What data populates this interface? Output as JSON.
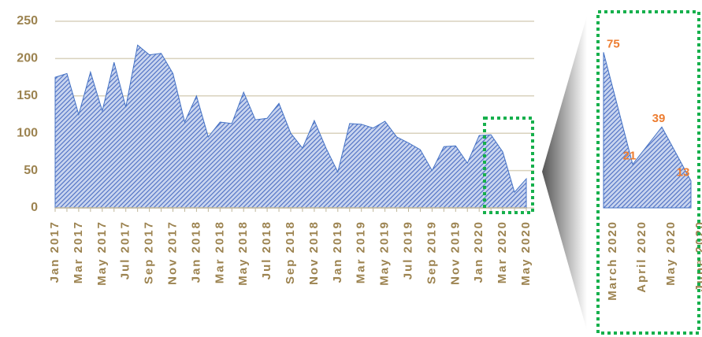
{
  "chart_data": [
    {
      "type": "area",
      "color": "#4472c4",
      "grid": true,
      "categories": [
        "Jan 2017",
        null,
        "Mar 2017",
        null,
        "May 2017",
        null,
        "Jul 2017",
        null,
        "Sep 2017",
        null,
        "Nov 2017",
        null,
        "Jan 2018",
        null,
        "Mar 2018",
        null,
        "May 2018",
        null,
        "Jul 2018",
        null,
        "Sep 2018",
        null,
        "Nov 2018",
        null,
        "Jan 2019",
        null,
        "Mar 2019",
        null,
        "May 2019",
        null,
        "Jul 2019",
        null,
        "Sep 2019",
        null,
        "Nov 2019",
        null,
        "Jan 2020",
        null,
        "Mar 2020",
        null,
        "May 2020"
      ],
      "values": [
        175,
        180,
        125,
        182,
        130,
        195,
        135,
        218,
        205,
        207,
        180,
        115,
        150,
        95,
        115,
        113,
        155,
        118,
        120,
        140,
        100,
        80,
        117,
        80,
        48,
        113,
        112,
        107,
        116,
        95,
        87,
        78,
        50,
        82,
        83,
        60,
        97,
        98,
        75,
        21,
        39
      ],
      "ylim": [
        0,
        250
      ],
      "yticks": [
        0,
        50,
        100,
        150,
        200,
        250
      ]
    },
    {
      "type": "area",
      "color": "#4472c4",
      "label_color": "#ed7d31",
      "categories": [
        "March 2020",
        "April 2020",
        "May 2020",
        "June 2020"
      ],
      "values": [
        75,
        21,
        39,
        13
      ],
      "ylim": [
        0,
        85
      ]
    }
  ]
}
